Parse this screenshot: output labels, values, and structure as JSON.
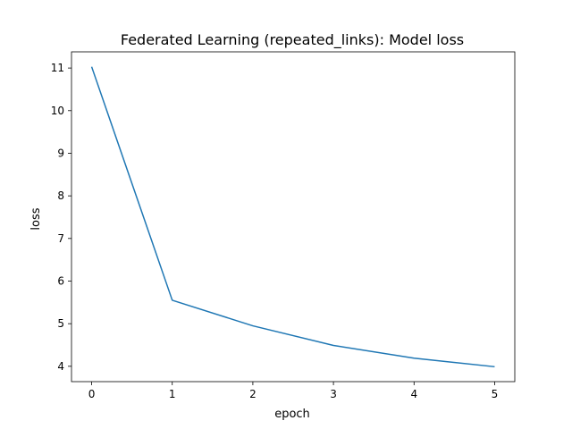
{
  "chart_data": {
    "type": "line",
    "title": "Federated Learning (repeated_links): Model loss",
    "xlabel": "epoch",
    "ylabel": "loss",
    "xlim": [
      -0.25,
      5.25
    ],
    "ylim": [
      3.64,
      11.38
    ],
    "xticks": [
      0,
      1,
      2,
      3,
      4,
      5
    ],
    "yticks": [
      4,
      5,
      6,
      7,
      8,
      9,
      10,
      11
    ],
    "grid": false,
    "x": [
      0,
      1,
      2,
      3,
      4,
      5
    ],
    "series": [
      {
        "values": [
          11.03,
          5.55,
          4.95,
          4.49,
          4.19,
          3.99
        ],
        "color": "#1f77b4"
      }
    ]
  }
}
